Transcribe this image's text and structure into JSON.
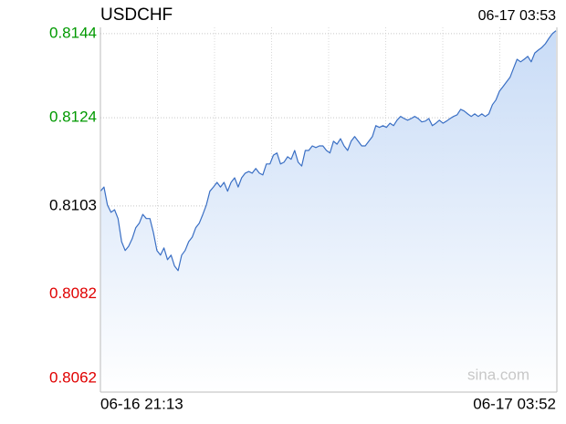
{
  "chart_data": {
    "type": "line",
    "title": "USDCHF",
    "timestamp": "06-17 03:53",
    "watermark": "sina.com",
    "categories": [
      "06-16 21:13",
      null,
      null,
      null,
      null,
      null,
      null,
      null,
      null,
      null,
      null,
      null,
      null,
      null,
      null,
      null,
      null,
      null,
      null,
      null,
      null,
      null,
      null,
      null,
      null,
      null,
      null,
      null,
      null,
      null,
      null,
      null,
      null,
      null,
      null,
      null,
      null,
      null,
      null,
      null,
      null,
      null,
      null,
      null,
      null,
      null,
      null,
      null,
      null,
      null,
      null,
      null,
      null,
      null,
      null,
      null,
      null,
      null,
      null,
      null,
      null,
      null,
      null,
      null,
      null,
      null,
      null,
      null,
      null,
      null,
      null,
      null,
      null,
      null,
      null,
      null,
      null,
      null,
      null,
      null,
      null,
      null,
      null,
      null,
      null,
      null,
      null,
      null,
      null,
      null,
      null,
      null,
      null,
      null,
      null,
      null,
      null,
      null,
      null,
      null,
      null,
      null,
      null,
      null,
      null,
      null,
      null,
      null,
      null,
      null,
      null,
      null,
      null,
      null,
      null,
      null,
      null,
      null,
      null,
      null,
      null,
      null,
      null,
      null,
      null,
      null,
      null,
      null,
      null,
      "06-17 03:52"
    ],
    "values": [
      0.81065,
      0.81075,
      0.81032,
      0.81015,
      0.81021,
      0.81,
      0.80945,
      0.80924,
      0.80934,
      0.80952,
      0.80978,
      0.80989,
      0.8101,
      0.81,
      0.81,
      0.80967,
      0.80924,
      0.80913,
      0.8093,
      0.80902,
      0.80913,
      0.80887,
      0.80876,
      0.80913,
      0.80924,
      0.80945,
      0.80956,
      0.80978,
      0.80989,
      0.8101,
      0.81032,
      0.81065,
      0.81075,
      0.81086,
      0.81075,
      0.81086,
      0.81065,
      0.81086,
      0.81097,
      0.81075,
      0.81097,
      0.81108,
      0.81112,
      0.81108,
      0.81119,
      0.81108,
      0.81104,
      0.8113,
      0.8113,
      0.81151,
      0.81156,
      0.8113,
      0.81134,
      0.81147,
      0.81141,
      0.81162,
      0.81134,
      0.81125,
      0.81162,
      0.81162,
      0.81173,
      0.81169,
      0.81173,
      0.81173,
      0.81162,
      0.81156,
      0.81184,
      0.81177,
      0.8119,
      0.81173,
      0.81162,
      0.81184,
      0.81195,
      0.81184,
      0.81173,
      0.81173,
      0.81184,
      0.81195,
      0.81221,
      0.81217,
      0.81221,
      0.81217,
      0.81227,
      0.81221,
      0.81234,
      0.81243,
      0.81238,
      0.81234,
      0.81238,
      0.81243,
      0.81238,
      0.8123,
      0.81232,
      0.81238,
      0.81221,
      0.81227,
      0.81234,
      0.81227,
      0.81232,
      0.81238,
      0.81243,
      0.81247,
      0.8126,
      0.81256,
      0.81249,
      0.81243,
      0.81249,
      0.81243,
      0.81249,
      0.81243,
      0.81249,
      0.81271,
      0.81282,
      0.81303,
      0.81314,
      0.81325,
      0.81336,
      0.81358,
      0.81379,
      0.81373,
      0.81379,
      0.81386,
      0.81373,
      0.81394,
      0.81401,
      0.81407,
      0.81416,
      0.81429,
      0.8144,
      0.81447
    ],
    "color": "#3a6fc4",
    "fill_color": "#c6daf6",
    "ylim": [
      0.80587,
      0.81455
    ],
    "yticks": [
      0.8062,
      0.8082,
      0.8103,
      0.8124,
      0.8144
    ],
    "ytick_colors": [
      "#e00000",
      "#e00000",
      "#000000",
      "#009900",
      "#009900"
    ],
    "grid": true
  }
}
